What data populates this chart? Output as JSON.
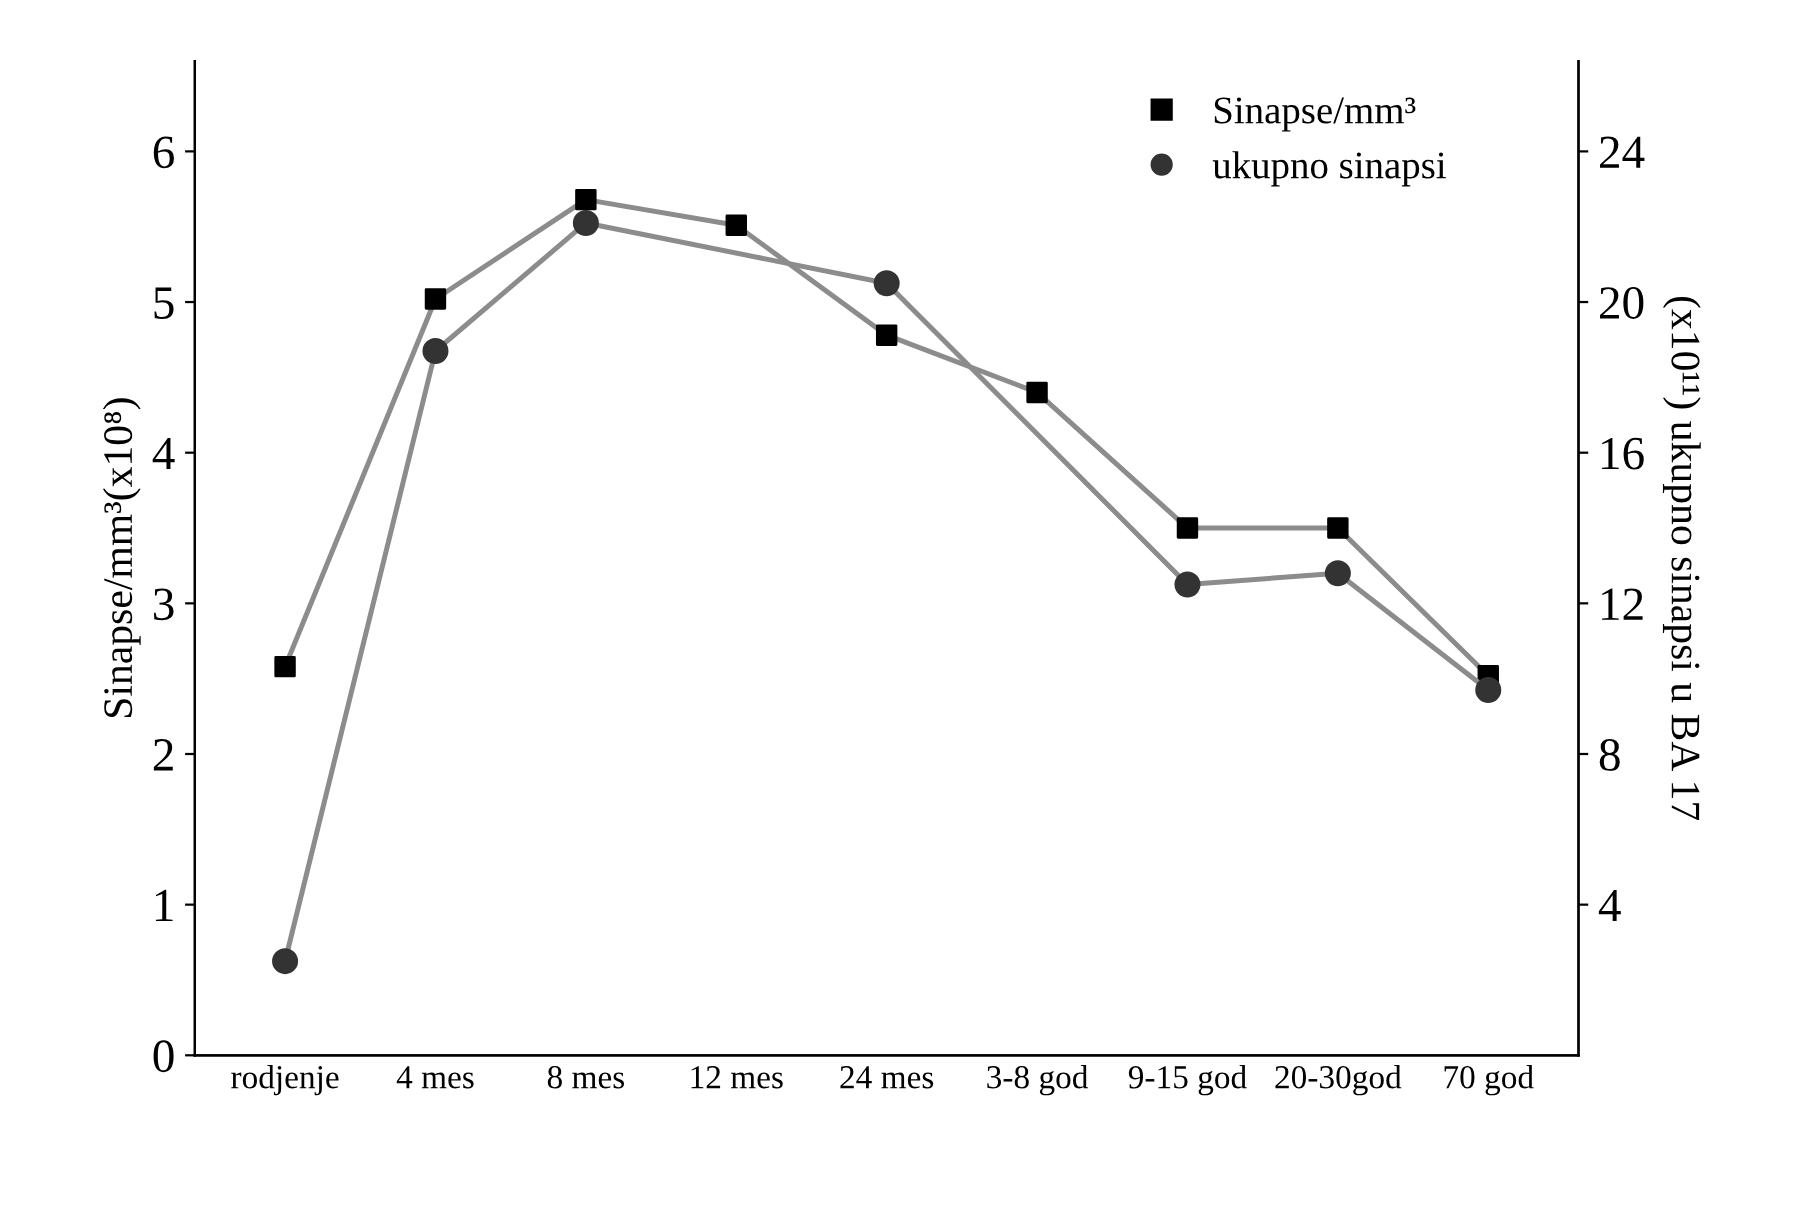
{
  "chart_data": {
    "type": "line",
    "categories": [
      "rodjenje",
      "4 mes",
      "8 mes",
      "12 mes",
      "24 mes",
      "3-8 god",
      "9-15 god",
      "20-30god",
      "70 god"
    ],
    "ylabel": "Sinapse/mm³(x10⁸)",
    "y2label": "(x10¹¹) ukupno sinapsi u BA 17",
    "ylim": [
      0,
      6.6
    ],
    "yticks": [
      0,
      1,
      2,
      3,
      4,
      5,
      6
    ],
    "y2lim": [
      0,
      26.4
    ],
    "y2ticks": [
      4,
      8,
      12,
      16,
      20,
      24
    ],
    "grid": false,
    "legend": "top right",
    "line_style": "solid",
    "series": [
      {
        "name": "Sinapse/mm³",
        "color": "#000000",
        "marker": "square",
        "values": [
          2.58,
          5.02,
          5.68,
          5.51,
          4.78,
          4.4,
          3.5,
          3.5,
          2.52
        ]
      },
      {
        "name": "ukupno sinapsi",
        "color": "#333333",
        "marker": "circle",
        "axis": "y2",
        "values": [
          2.5,
          18.7,
          22.1,
          null,
          20.5,
          null,
          12.5,
          12.8,
          9.7
        ]
      }
    ]
  }
}
